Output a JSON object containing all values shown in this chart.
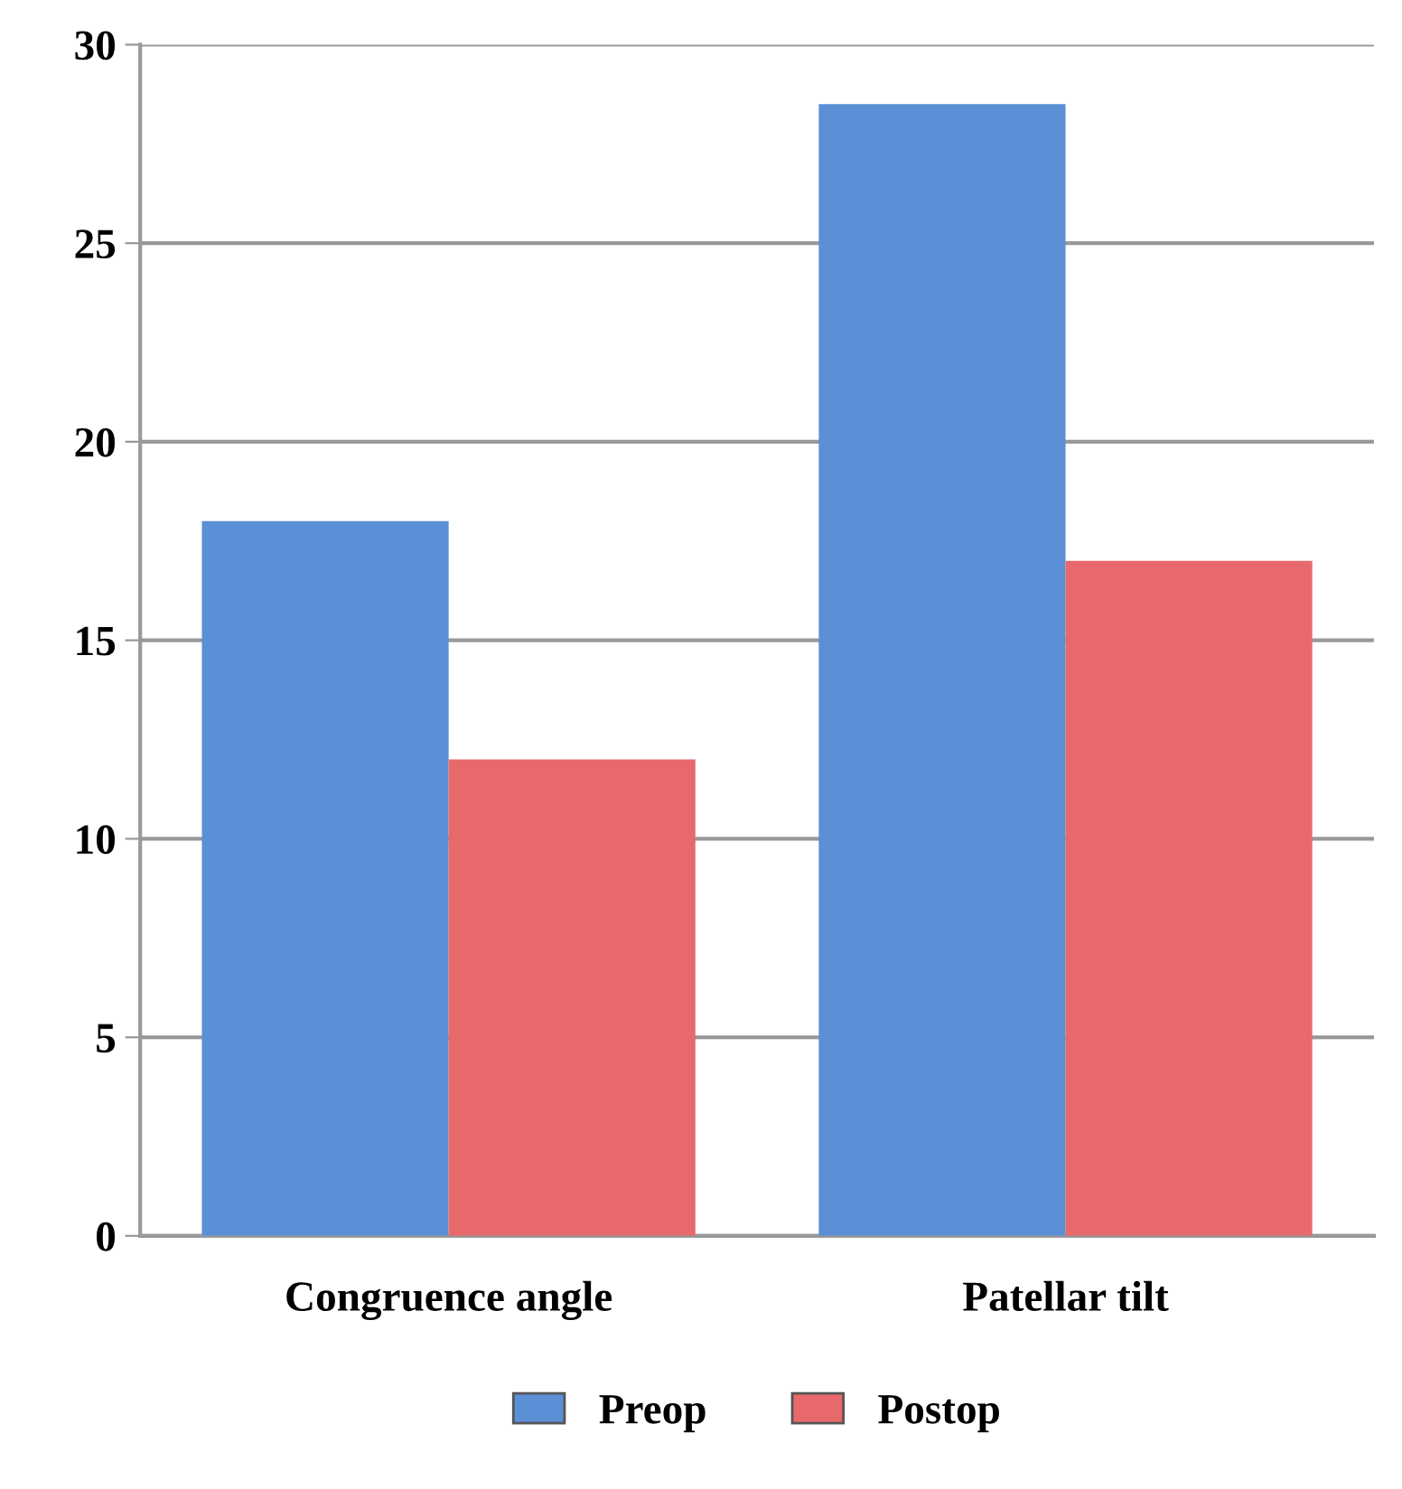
{
  "chart_data": {
    "type": "bar",
    "categories": [
      "Congruence angle",
      "Patellar tilt"
    ],
    "series": [
      {
        "name": "Preop",
        "color": "#5b8fd6",
        "values": [
          18,
          28.5
        ]
      },
      {
        "name": "Postop",
        "color": "#e8696b",
        "values": [
          12,
          17
        ]
      }
    ],
    "ylim": [
      0,
      30
    ],
    "yticks": [
      0,
      5,
      10,
      15,
      20,
      25,
      30
    ],
    "grid": "y",
    "legend": "bottom"
  }
}
